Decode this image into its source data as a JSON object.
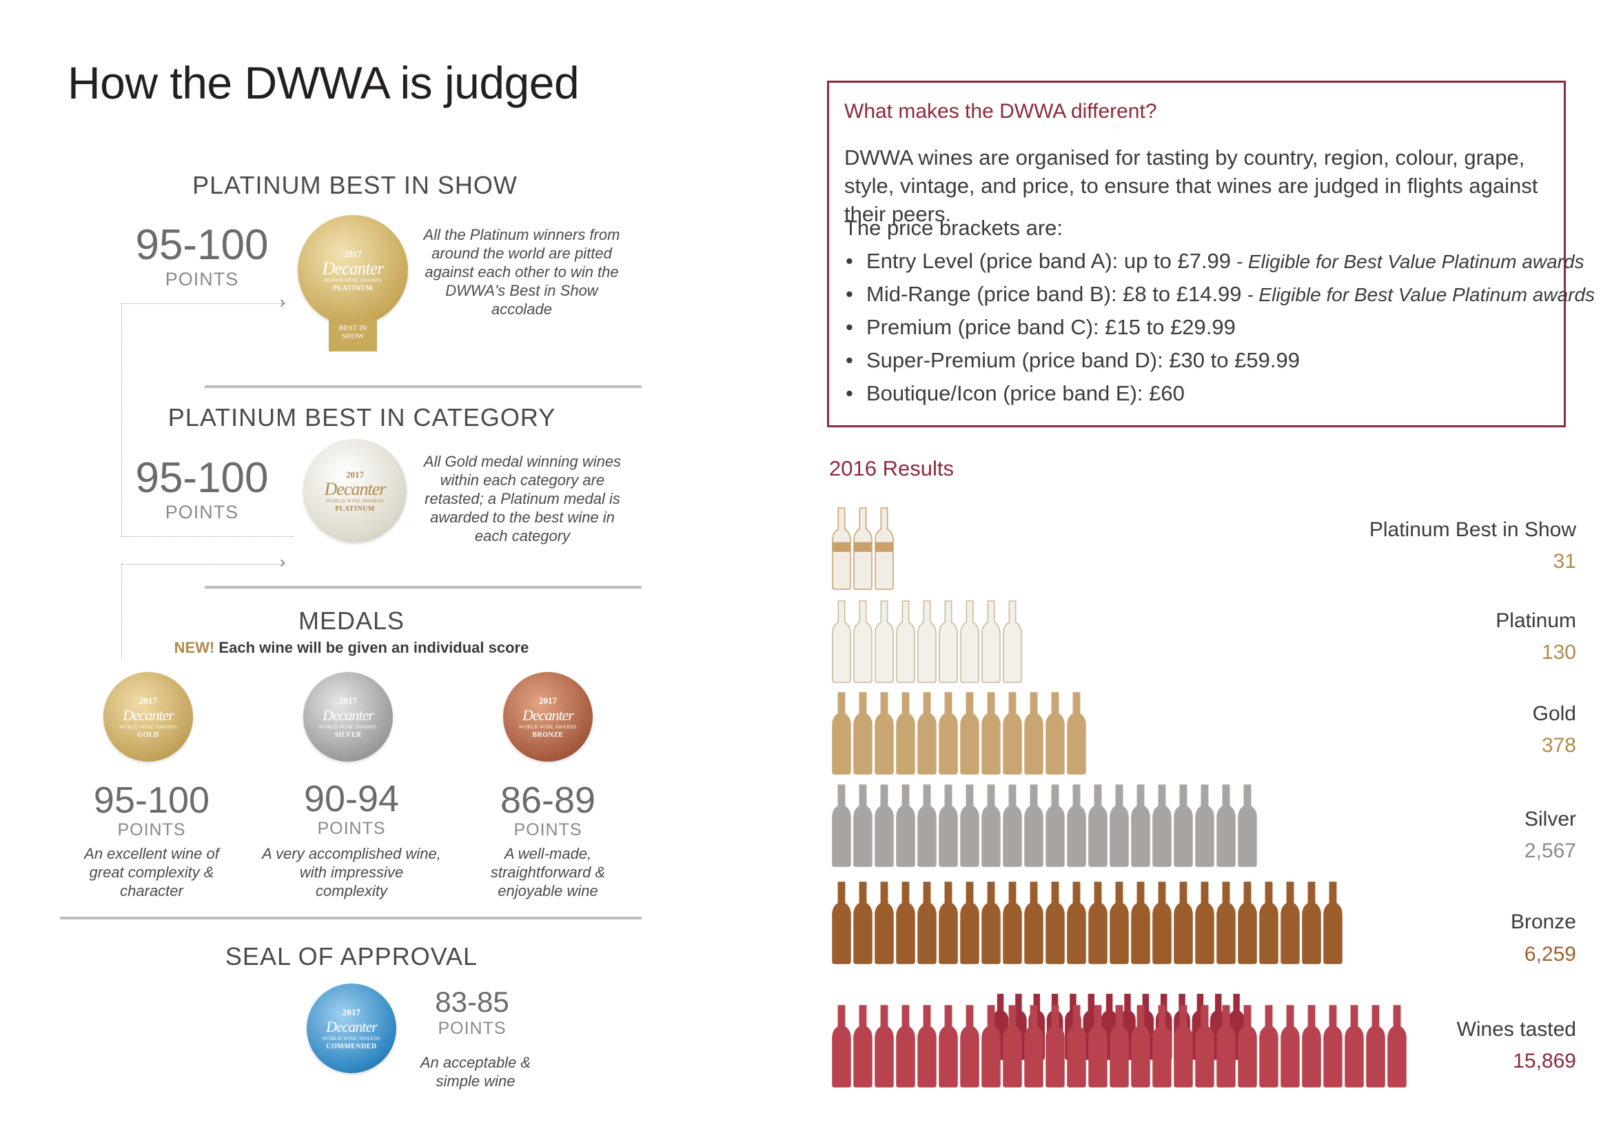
{
  "title": "How the DWWA is judged",
  "left": {
    "sections": {
      "best_in_show": {
        "title": "PLATINUM BEST IN SHOW",
        "points": "95-100",
        "points_label": "POINTS",
        "description": "All the Platinum winners from around the world are pitted against each other to win the DWWA's Best in Show accolade",
        "medal": {
          "year": "2017",
          "brand": "Decanter",
          "sub": "WORLD WINE AWARDS",
          "tier": "PLATINUM",
          "extra": "BEST IN SHOW",
          "color": "#c9a95a"
        }
      },
      "best_in_category": {
        "title": "PLATINUM BEST IN CATEGORY",
        "points": "95-100",
        "points_label": "POINTS",
        "description": "All Gold medal winning wines within each category are retasted; a Platinum medal is awarded to the best wine in each category",
        "medal": {
          "year": "2017",
          "brand": "Decanter",
          "sub": "WORLD WINE AWARDS",
          "tier": "PLATINUM",
          "color": "#d8d3c9"
        }
      },
      "medals": {
        "title": "MEDALS",
        "new_label": "NEW!",
        "new_text": " Each wine will be given an individual score",
        "items": [
          {
            "medal": {
              "year": "2017",
              "brand": "Decanter",
              "sub": "WORLD WINE AWARDS",
              "tier": "GOLD",
              "color": "#c4a45c"
            },
            "points": "95-100",
            "points_label": "POINTS",
            "description": "An excellent wine of great complexity & character"
          },
          {
            "medal": {
              "year": "2017",
              "brand": "Decanter",
              "sub": "WORLD WINE AWARDS",
              "tier": "SILVER",
              "color": "#9c9c9c"
            },
            "points": "90-94",
            "points_label": "POINTS",
            "description": "A very accomplished wine, with impressive complexity"
          },
          {
            "medal": {
              "year": "2017",
              "brand": "Decanter",
              "sub": "WORLD WINE AWARDS",
              "tier": "BRONZE",
              "color": "#a55a3e"
            },
            "points": "86-89",
            "points_label": "POINTS",
            "description": "A well-made, straightforward & enjoyable wine"
          }
        ]
      },
      "seal": {
        "title": "SEAL OF APPROVAL",
        "points": "83-85",
        "points_label": "POINTS",
        "description": "An acceptable & simple wine",
        "medal": {
          "year": "2017",
          "brand": "Decanter",
          "sub": "WORLD WINE AWARDS",
          "tier": "COMMENDED",
          "color": "#2f86c1"
        }
      }
    }
  },
  "box": {
    "title": "What makes the DWWA different?",
    "paragraph": "DWWA wines are organised for tasting by country, region, colour, grape, style, vintage, and price, to ensure that wines are judged in flights against their peers.",
    "brackets_intro": "The price brackets are:",
    "brackets": [
      {
        "text": "Entry Level (price band A): up to £7.99",
        "note": " - Eligible for Best Value Platinum awards"
      },
      {
        "text": "Mid-Range (price band B): £8 to £14.99",
        "note": " - Eligible for Best Value Platinum awards"
      },
      {
        "text": "Premium (price band C): £15 to £29.99",
        "note": ""
      },
      {
        "text": "Super-Premium (price band D): £30 to £59.99",
        "note": ""
      },
      {
        "text": "Boutique/Icon (price band E): £60",
        "note": ""
      }
    ]
  },
  "results": {
    "title": "2016 Results",
    "rows": [
      {
        "label": "Platinum Best in Show",
        "value": "31",
        "value_color": "#b08a4a",
        "bottle_color": "#f1ede6",
        "bottle_stroke": "#c9a06a",
        "bottles": 3,
        "band": true
      },
      {
        "label": "Platinum",
        "value": "130",
        "value_color": "#b08a4a",
        "bottle_color": "#f3f0ea",
        "bottle_stroke": "#c9b79a",
        "bottles": 9
      },
      {
        "label": "Gold",
        "value": "378",
        "value_color": "#b08a4a",
        "bottle_color": "#c9a572",
        "bottle_stroke": "#c9a572",
        "bottles": 12
      },
      {
        "label": "Silver",
        "value": "2,567",
        "value_color": "#8a8a8a",
        "bottle_color": "#a7a4a2",
        "bottle_stroke": "#a7a4a2",
        "bottles": 20
      },
      {
        "label": "Bronze",
        "value": "6,259",
        "value_color": "#a0602e",
        "bottle_color": "#9c5d2c",
        "bottle_stroke": "#9c5d2c",
        "bottles": 24
      },
      {
        "label": "Wines tasted",
        "value": "15,869",
        "value_color": "#8c2a3c",
        "bottle_color": "#b8434f",
        "bottle_stroke": "#b8434f",
        "bottles": 27,
        "back_color": "#9e2c3d",
        "back_bottles": 14
      }
    ]
  }
}
